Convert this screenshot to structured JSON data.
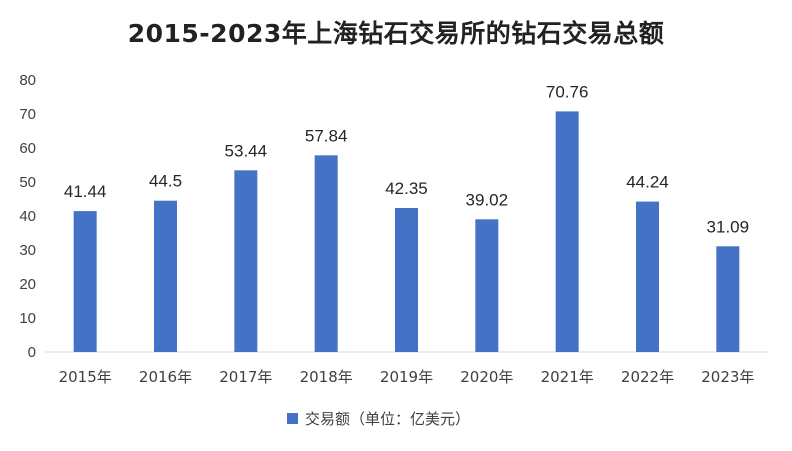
{
  "chart_data": {
    "type": "bar",
    "title": "2015-2023年上海钻石交易所的钻石交易总额",
    "categories": [
      "2015年",
      "2016年",
      "2017年",
      "2018年",
      "2019年",
      "2020年",
      "2021年",
      "2022年",
      "2023年"
    ],
    "series": [
      {
        "name": "交易额（单位：亿美元）",
        "values": [
          41.44,
          44.5,
          53.44,
          57.84,
          42.35,
          39.02,
          70.76,
          44.24,
          31.09
        ],
        "labels": [
          "41.44",
          "44.5",
          "53.44",
          "57.84",
          "42.35",
          "39.02",
          "70.76",
          "44.24",
          "31.09"
        ],
        "color": "#4472C4"
      }
    ],
    "xlabel": "",
    "ylabel": "",
    "ylim": [
      0,
      80
    ],
    "yticks": [
      "0",
      "10",
      "20",
      "30",
      "40",
      "50",
      "60",
      "70",
      "80"
    ],
    "grid": false,
    "legend_position": "bottom",
    "axis_color": "#D9D9D9"
  }
}
